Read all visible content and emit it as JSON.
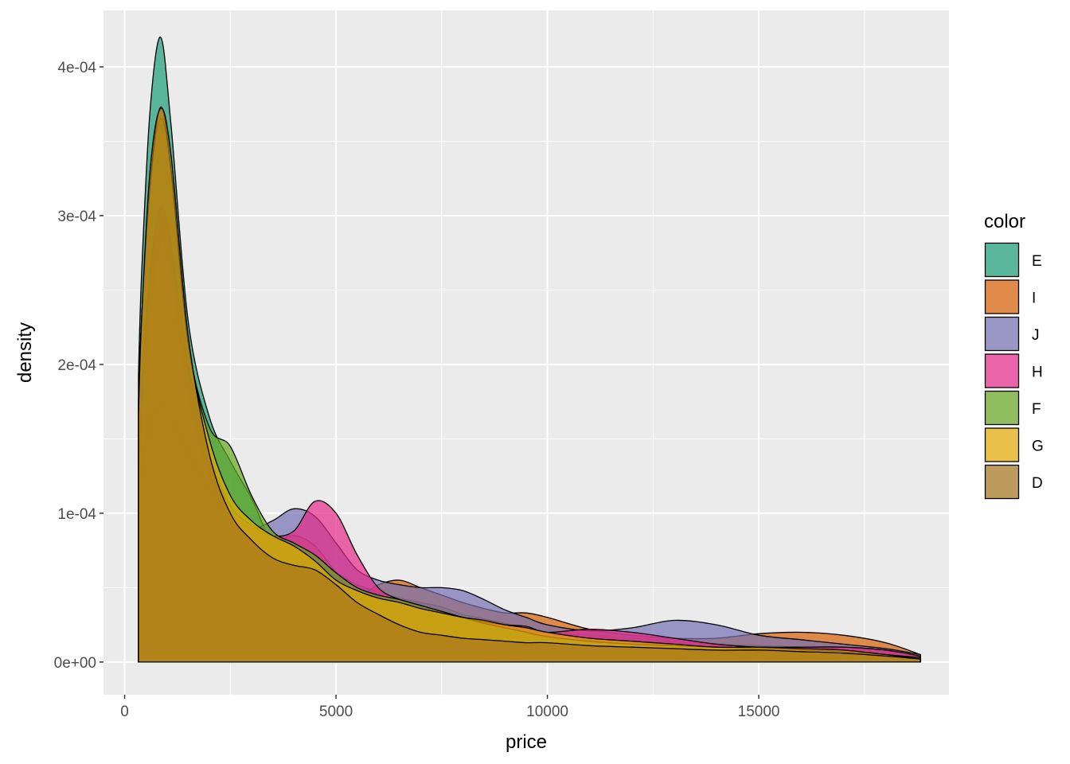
{
  "chart_data": {
    "type": "area",
    "title": "",
    "xlabel": "price",
    "ylabel": "density",
    "xlim": [
      -500,
      19500
    ],
    "ylim": [
      -2.2e-05,
      0.000438
    ],
    "x_ticks": [
      0,
      5000,
      10000,
      15000
    ],
    "x_tick_labels": [
      "0",
      "5000",
      "10000",
      "15000"
    ],
    "x_minor_ticks": [
      2500,
      7500,
      12500,
      17500
    ],
    "y_ticks": [
      0,
      0.0001,
      0.0002,
      0.0003,
      0.0004
    ],
    "y_tick_labels": [
      "0e+00",
      "1e-04",
      "2e-04",
      "3e-04",
      "4e-04"
    ],
    "y_minor_ticks": [
      5e-05,
      0.00015,
      0.00025,
      0.00035
    ],
    "grid": true,
    "fill_opacity": 0.7,
    "legend": {
      "title": "color",
      "position": "right",
      "entries": [
        "E",
        "I",
        "J",
        "H",
        "F",
        "G",
        "D"
      ]
    },
    "x": [
      326,
      400,
      600,
      850,
      1100,
      1500,
      2000,
      2500,
      3000,
      3500,
      4000,
      4500,
      5000,
      5500,
      6000,
      6500,
      7000,
      7500,
      8000,
      8500,
      9000,
      9500,
      10000,
      11000,
      12000,
      13000,
      14000,
      15000,
      16000,
      17000,
      18000,
      18823
    ],
    "series": [
      {
        "name": "E",
        "color": "#1B9E77",
        "values": [
          0.000192,
          0.00026,
          0.00037,
          0.00042,
          0.00036,
          0.00023,
          0.000165,
          0.000135,
          0.00011,
          8e-05,
          7.5e-05,
          6.8e-05,
          6e-05,
          5.2e-05,
          4.7e-05,
          4.3e-05,
          4e-05,
          3.7e-05,
          3.2e-05,
          2.9e-05,
          2.6e-05,
          2.3e-05,
          2e-05,
          1.8e-05,
          1.6e-05,
          1.4e-05,
          1.2e-05,
          1.1e-05,
          1e-05,
          9e-06,
          8e-06,
          5e-06
        ]
      },
      {
        "name": "I",
        "color": "#D95F02",
        "values": [
          0.000125,
          0.00016,
          0.00023,
          0.00028,
          0.00026,
          0.00018,
          0.000125,
          9.5e-05,
          8.2e-05,
          8e-05,
          8.5e-05,
          7.8e-05,
          6e-05,
          4.5e-05,
          5.2e-05,
          5.5e-05,
          5e-05,
          4.5e-05,
          4e-05,
          3.6e-05,
          3.3e-05,
          3.3e-05,
          3e-05,
          2.2e-05,
          1.8e-05,
          1.6e-05,
          1.6e-05,
          1.9e-05,
          2e-05,
          1.8e-05,
          1.3e-05,
          5e-06
        ]
      },
      {
        "name": "J",
        "color": "#7570B3",
        "values": [
          0.00011,
          0.00013,
          0.00016,
          0.000175,
          0.000165,
          0.00014,
          0.000115,
          0.0001,
          9e-05,
          9.5e-05,
          0.000103,
          9.8e-05,
          8e-05,
          6.2e-05,
          5.5e-05,
          5.2e-05,
          5e-05,
          5e-05,
          4.8e-05,
          4.2e-05,
          3.5e-05,
          3e-05,
          2.5e-05,
          2.1e-05,
          2.3e-05,
          2.8e-05,
          2.5e-05,
          1.8e-05,
          1.5e-05,
          1.2e-05,
          9e-06,
          5e-06
        ]
      },
      {
        "name": "H",
        "color": "#E7298A",
        "values": [
          0.00013,
          0.00018,
          0.00026,
          0.000305,
          0.00028,
          0.0002,
          0.00014,
          0.000105,
          9.2e-05,
          8.5e-05,
          8.8e-05,
          0.000108,
          0.0001,
          7.2e-05,
          5e-05,
          4.2e-05,
          3.8e-05,
          3.4e-05,
          3e-05,
          2.7e-05,
          2.5e-05,
          2.4e-05,
          2e-05,
          2.2e-05,
          2e-05,
          1.6e-05,
          1.2e-05,
          1e-05,
          1e-05,
          1e-05,
          8e-06,
          4e-06
        ]
      },
      {
        "name": "F",
        "color": "#66A61E",
        "values": [
          0.000175,
          0.00023,
          0.00032,
          0.000365,
          0.00033,
          0.000215,
          0.000158,
          0.000145,
          0.000112,
          8.8e-05,
          8e-05,
          7.2e-05,
          6e-05,
          5e-05,
          4.5e-05,
          4.2e-05,
          3.8e-05,
          3.4e-05,
          3e-05,
          2.6e-05,
          2.3e-05,
          2e-05,
          1.7e-05,
          1.4e-05,
          1.2e-05,
          1.1e-05,
          1e-05,
          9e-06,
          8e-06,
          7e-06,
          5e-06,
          3e-06
        ]
      },
      {
        "name": "G",
        "color": "#E6AB02",
        "values": [
          0.00017,
          0.00023,
          0.00032,
          0.000373,
          0.00033,
          0.000215,
          0.00015,
          0.000112,
          9.5e-05,
          8.5e-05,
          7.8e-05,
          6.8e-05,
          5.5e-05,
          4.8e-05,
          4.3e-05,
          4e-05,
          3.6e-05,
          3.3e-05,
          3e-05,
          2.8e-05,
          2.5e-05,
          2.3e-05,
          2e-05,
          1.6e-05,
          1.4e-05,
          1.2e-05,
          1e-05,
          1e-05,
          9e-06,
          8e-06,
          5e-06,
          2e-06
        ]
      },
      {
        "name": "D",
        "color": "#A6761D",
        "values": [
          0.000165,
          0.00023,
          0.00033,
          0.000372,
          0.00034,
          0.00022,
          0.00014,
          0.0001,
          8.2e-05,
          7e-05,
          6.5e-05,
          6.2e-05,
          5.2e-05,
          4e-05,
          3.2e-05,
          2.5e-05,
          2e-05,
          1.8e-05,
          1.6e-05,
          1.5e-05,
          1.4e-05,
          1.3e-05,
          1.3e-05,
          1.1e-05,
          1e-05,
          9e-06,
          8e-06,
          8e-06,
          7e-06,
          6e-06,
          4e-06,
          2e-06
        ]
      }
    ]
  }
}
